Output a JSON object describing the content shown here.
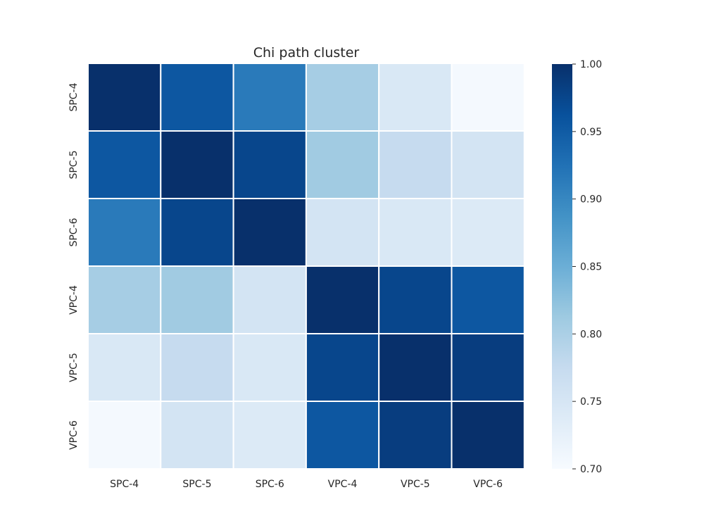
{
  "chart_data": {
    "type": "heatmap",
    "title": "Chi path cluster",
    "x_categories": [
      "SPC-4",
      "SPC-5",
      "SPC-6",
      "VPC-4",
      "VPC-5",
      "VPC-6"
    ],
    "y_categories": [
      "SPC-4",
      "SPC-5",
      "SPC-6",
      "VPC-4",
      "VPC-5",
      "VPC-6"
    ],
    "values": [
      [
        1.0,
        0.955,
        0.915,
        0.805,
        0.745,
        0.705
      ],
      [
        0.955,
        1.0,
        0.975,
        0.81,
        0.775,
        0.755
      ],
      [
        0.915,
        0.975,
        1.0,
        0.755,
        0.745,
        0.74
      ],
      [
        0.805,
        0.81,
        0.755,
        1.0,
        0.975,
        0.955
      ],
      [
        0.745,
        0.775,
        0.745,
        0.975,
        1.0,
        0.985
      ],
      [
        0.705,
        0.755,
        0.74,
        0.955,
        0.985,
        1.0
      ]
    ],
    "colorbar": {
      "min": 0.7,
      "max": 1.0,
      "ticks": [
        "0.70",
        "0.75",
        "0.80",
        "0.85",
        "0.90",
        "0.95",
        "1.00"
      ]
    },
    "colormap": "Blues",
    "colormap_stops": [
      "#f7fbff",
      "#deebf7",
      "#c6dbef",
      "#9ecae1",
      "#6baed6",
      "#4292c6",
      "#2171b5",
      "#08519c",
      "#08306b"
    ],
    "cell_border_color": "#ffffff"
  }
}
